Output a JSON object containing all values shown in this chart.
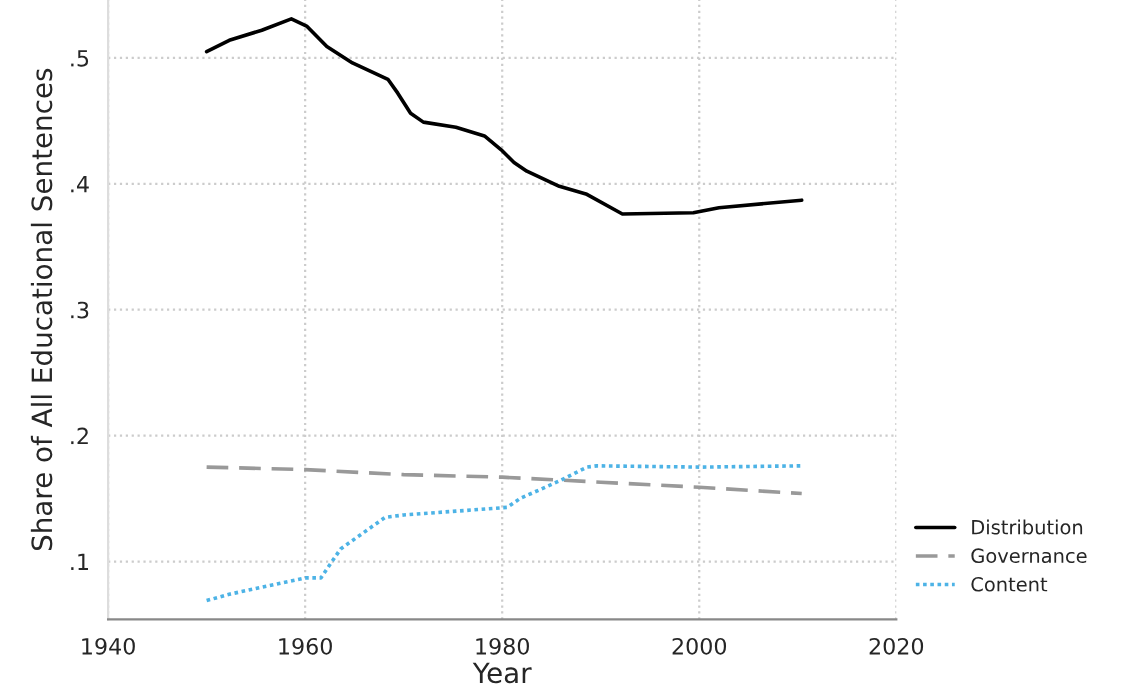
{
  "chart_data": {
    "type": "line",
    "xlabel": "Year",
    "ylabel": "Share of All Educational Sentences",
    "xlim": [
      1940,
      2020
    ],
    "xticks": [
      1940,
      1960,
      1980,
      2000,
      2020
    ],
    "ylim": [
      0.054,
      0.546
    ],
    "yticks": [
      {
        "value": 0.1,
        "label": ".1"
      },
      {
        "value": 0.2,
        "label": ".2"
      },
      {
        "value": 0.3,
        "label": ".3"
      },
      {
        "value": 0.4,
        "label": ".4"
      },
      {
        "value": 0.5,
        "label": ".5"
      }
    ],
    "grid": true,
    "legend": "bottom right",
    "series": [
      {
        "name": "Distribution",
        "color": "#000000",
        "line_style": "solid",
        "x": [
          1950,
          1952.3,
          1955.6,
          1958.6,
          1960.2,
          1962.2,
          1964.8,
          1968.4,
          1969.4,
          1970.7,
          1972,
          1975.3,
          1978.2,
          1979.9,
          1981.2,
          1982.5,
          1985.8,
          1988.5,
          1992.2,
          1999.4,
          2002,
          2010.4
        ],
        "values": [
          0.505,
          0.514,
          0.522,
          0.531,
          0.525,
          0.509,
          0.496,
          0.483,
          0.472,
          0.456,
          0.449,
          0.445,
          0.438,
          0.427,
          0.417,
          0.41,
          0.398,
          0.392,
          0.376,
          0.377,
          0.381,
          0.387
        ]
      },
      {
        "name": "Governance",
        "color": "#999999",
        "line_style": "dashed",
        "x": [
          1950,
          1960,
          1970,
          1980,
          1990,
          2000,
          2010.4
        ],
        "values": [
          0.175,
          0.173,
          0.169,
          0.167,
          0.163,
          0.159,
          0.154
        ]
      },
      {
        "name": "Content",
        "color": "#4db3e6",
        "line_style": "dotted",
        "x": [
          1950,
          1952.3,
          1960,
          1961.6,
          1963.6,
          1968.1,
          1970,
          1975.3,
          1980.5,
          1981.8,
          1985.8,
          1988.6,
          1989.6,
          2000.2,
          2010.4
        ],
        "values": [
          0.069,
          0.074,
          0.087,
          0.087,
          0.11,
          0.135,
          0.137,
          0.14,
          0.143,
          0.15,
          0.164,
          0.175,
          0.176,
          0.175,
          0.176
        ]
      }
    ]
  }
}
